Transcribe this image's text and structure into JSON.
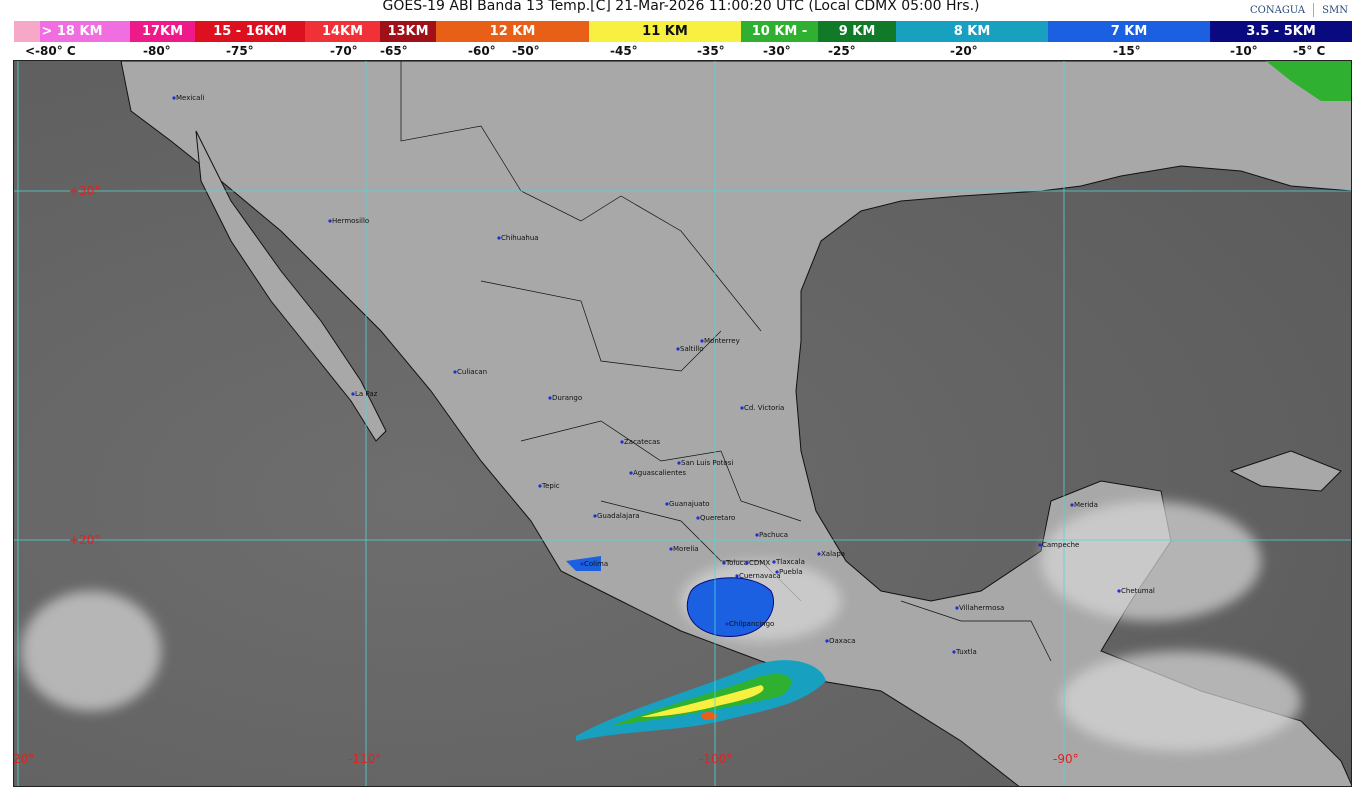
{
  "title": "GOES-19 ABI Banda 13 Temp.[C] 21-Mar-2026 11:00:20 UTC (Local CDMX  05:00 Hrs.)",
  "logos": {
    "conagua": "CONAGUA",
    "smn": "SMN"
  },
  "legend": {
    "segments": [
      {
        "label": "> 18 KM",
        "color": "#f06ee0"
      },
      {
        "label": "17KM",
        "color": "#ee1a8a"
      },
      {
        "label": "15 - 16KM",
        "color": "#dd1020"
      },
      {
        "label": "14KM",
        "color": "#f03238"
      },
      {
        "label": "13KM",
        "color": "#a01018"
      },
      {
        "label": "12 KM",
        "color": "#e86018"
      },
      {
        "label": "11 KM",
        "color": "#f7f040"
      },
      {
        "label": "10 KM -",
        "color": "#30b030"
      },
      {
        "label": "9 KM",
        "color": "#107a28"
      },
      {
        "label": "8 KM",
        "color": "#18a0c0"
      },
      {
        "label": "7 KM",
        "color": "#1a60e0"
      },
      {
        "label": "3.5 - 5KM",
        "color": "#0a0a80"
      }
    ],
    "temps": [
      "<-80° C",
      "-80°",
      "-75°",
      "-70°",
      "-65°",
      "-60°",
      "-50°",
      "-45°",
      "-35°",
      "-30°",
      "-25°",
      "-20°",
      "-15°",
      "-10°",
      "-5° C"
    ]
  },
  "grid": {
    "lats": [
      "+30°",
      "+20°"
    ],
    "lons": [
      "-120°",
      "-110°",
      "-100°",
      "-90°"
    ]
  },
  "cities": [
    "Mexicali",
    "Hermosillo",
    "Chihuahua",
    "Culiacan",
    "La Paz",
    "Durango",
    "Saltillo",
    "Monterrey",
    "Cd. Victoria",
    "Zacatecas",
    "San Luis Potosi",
    "Aguascalientes",
    "Tepic",
    "Guanajuato",
    "Guadalajara",
    "Queretaro",
    "Pachuca",
    "Morelia",
    "Xalapa",
    "Colima",
    "Toluca",
    "CDMX",
    "Tlaxcala",
    "Puebla",
    "Cuernavaca",
    "Chilpancingo",
    "Oaxaca",
    "Villahermosa",
    "Tuxtla",
    "Campeche",
    "Merida",
    "Chetumal"
  ]
}
